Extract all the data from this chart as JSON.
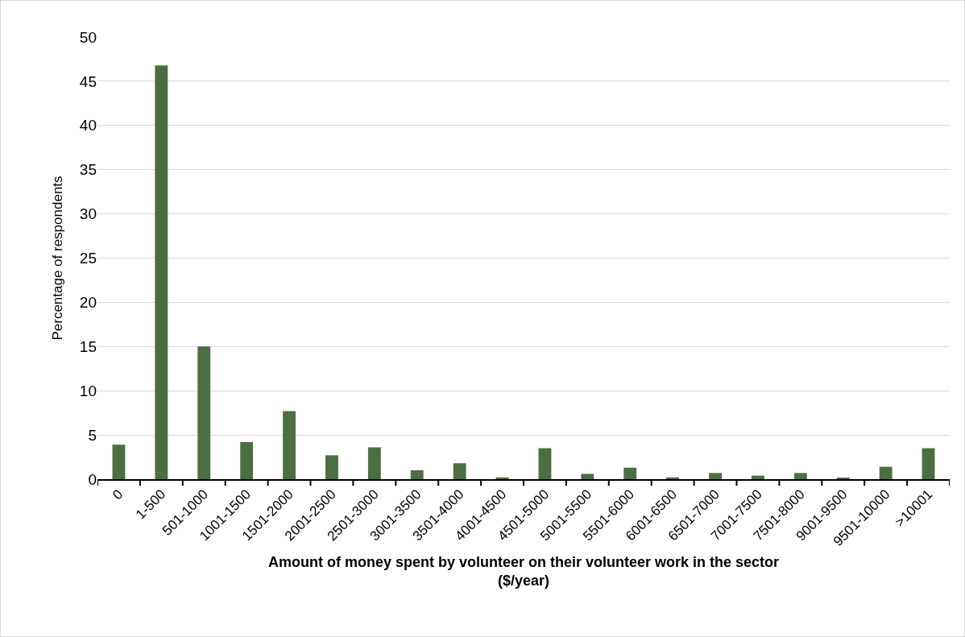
{
  "chart_data": {
    "type": "bar",
    "categories": [
      "0",
      "1-500",
      "501-1000",
      "1001-1500",
      "1501-2000",
      "2001-2500",
      "2501-3000",
      "3001-3500",
      "3501-4000",
      "4001-4500",
      "4501-5000",
      "5001-5500",
      "5501-6000",
      "6001-6500",
      "6501-7000",
      "7001-7500",
      "7501-8000",
      "9001-9500",
      "9501-10000",
      ">10001"
    ],
    "values": [
      3.9,
      46.8,
      15.0,
      4.2,
      7.7,
      2.7,
      3.6,
      1.0,
      1.8,
      0.2,
      3.5,
      0.6,
      1.3,
      0.2,
      0.7,
      0.4,
      0.7,
      0.1,
      1.4,
      3.5
    ],
    "color": "#4d6e42",
    "xlabel": "Amount of money spent by volunteer on their volunteer work in the sector\n($/year)",
    "ylabel": "Percentage of respondents",
    "ylim": [
      0,
      50
    ],
    "yticks": [
      0,
      5,
      10,
      15,
      20,
      25,
      30,
      35,
      40,
      45,
      50
    ],
    "grid": "y",
    "legend": false
  }
}
